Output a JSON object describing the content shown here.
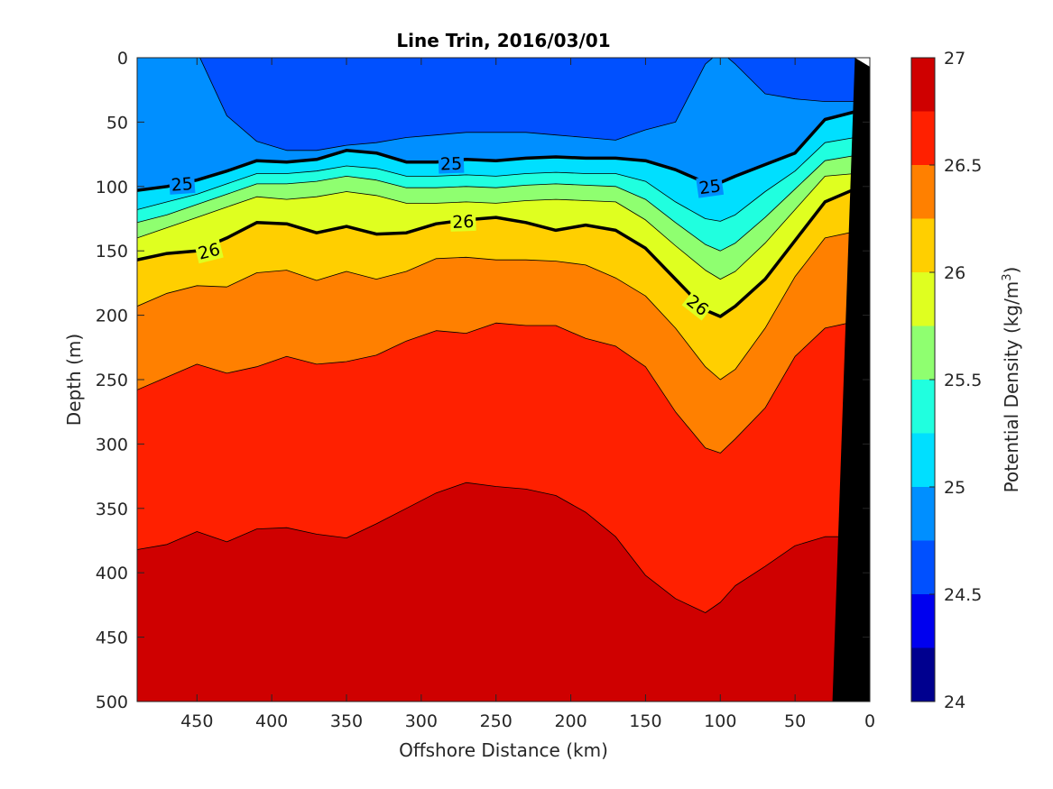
{
  "chart_data": {
    "type": "contour",
    "title": "Line Trin, 2016/03/01",
    "xlabel": "Offshore Distance (km)",
    "ylabel": "Depth (m)",
    "colorbar_label": "Potential Density (kg/m",
    "colorbar_label_sup": "3",
    "colorbar_label_end": ")",
    "xlim": [
      490,
      0
    ],
    "ylim": [
      0,
      500
    ],
    "x_reversed": true,
    "y_reversed": true,
    "xticks": [
      450,
      400,
      350,
      300,
      250,
      200,
      150,
      100,
      50,
      0
    ],
    "yticks": [
      0,
      50,
      100,
      150,
      200,
      250,
      300,
      350,
      400,
      450,
      500
    ],
    "clim": [
      24,
      27
    ],
    "cbar_ticks": [
      24,
      24.5,
      25,
      25.5,
      26,
      26.5,
      27
    ],
    "levels": [
      24,
      24.25,
      24.5,
      24.75,
      25,
      25.25,
      25.5,
      25.75,
      26,
      26.25,
      26.5,
      26.75,
      27
    ],
    "level_colors": [
      "#00008f",
      "#0000ef",
      "#0050ff",
      "#008fff",
      "#00dfff",
      "#20ffdf",
      "#8fff70",
      "#dfff20",
      "#ffcf00",
      "#ff8000",
      "#ff2000",
      "#cf0000"
    ],
    "x_stations": [
      490,
      470,
      450,
      430,
      410,
      390,
      370,
      350,
      330,
      310,
      290,
      270,
      250,
      230,
      210,
      190,
      170,
      150,
      130,
      110,
      100,
      90,
      70,
      50,
      30,
      10
    ],
    "isopycnals": [
      {
        "level": 24.75,
        "depths": [
          -5,
          -5,
          -5,
          45,
          65,
          72,
          72,
          68,
          66,
          62,
          60,
          58,
          58,
          58,
          60,
          62,
          64,
          56,
          50,
          5,
          -5,
          5,
          28,
          32,
          34,
          34
        ]
      },
      {
        "level": 25.0,
        "depths": [
          103,
          100,
          95,
          88,
          80,
          81,
          79,
          72,
          74,
          81,
          81,
          79,
          80,
          78,
          77,
          78,
          78,
          80,
          87,
          97,
          97,
          92,
          83,
          74,
          48,
          42
        ]
      },
      {
        "level": 25.25,
        "depths": [
          118,
          112,
          106,
          98,
          90,
          90,
          88,
          84,
          86,
          92,
          92,
          91,
          92,
          90,
          89,
          90,
          90,
          96,
          112,
          125,
          127,
          122,
          104,
          88,
          66,
          62
        ]
      },
      {
        "level": 25.5,
        "depths": [
          128,
          122,
          114,
          106,
          98,
          98,
          96,
          92,
          95,
          101,
          101,
          100,
          101,
          99,
          98,
          99,
          100,
          110,
          128,
          145,
          150,
          144,
          124,
          102,
          80,
          76
        ]
      },
      {
        "level": 25.75,
        "depths": [
          140,
          132,
          124,
          116,
          108,
          110,
          108,
          104,
          107,
          113,
          113,
          112,
          113,
          111,
          110,
          111,
          112,
          126,
          146,
          165,
          172,
          166,
          144,
          118,
          92,
          90
        ]
      },
      {
        "level": 26.0,
        "depths": [
          157,
          152,
          150,
          140,
          128,
          129,
          136,
          131,
          137,
          136,
          129,
          126,
          124,
          128,
          134,
          130,
          134,
          148,
          172,
          196,
          201,
          193,
          172,
          142,
          112,
          102
        ]
      },
      {
        "level": 26.25,
        "depths": [
          193,
          183,
          177,
          178,
          167,
          165,
          173,
          166,
          172,
          166,
          156,
          155,
          157,
          157,
          158,
          161,
          171,
          185,
          210,
          240,
          250,
          242,
          210,
          170,
          140,
          135
        ]
      },
      {
        "level": 26.5,
        "depths": [
          258,
          248,
          238,
          245,
          240,
          232,
          238,
          236,
          231,
          220,
          212,
          214,
          206,
          208,
          208,
          218,
          224,
          240,
          275,
          303,
          307,
          296,
          272,
          232,
          210,
          205
        ]
      },
      {
        "level": 26.75,
        "depths": [
          382,
          378,
          368,
          376,
          366,
          365,
          370,
          373,
          362,
          350,
          338,
          330,
          333,
          335,
          340,
          353,
          372,
          402,
          420,
          431,
          423,
          410,
          395,
          379,
          372,
          372
        ]
      }
    ],
    "bold_contours": [
      {
        "level": 25,
        "labels": [
          {
            "text": "25",
            "x": 460,
            "depth": 98,
            "angle": -4
          },
          {
            "text": "25",
            "x": 280,
            "depth": 82,
            "angle": -2
          },
          {
            "text": "25",
            "x": 107,
            "depth": 100,
            "angle": -8
          }
        ]
      },
      {
        "level": 26,
        "labels": [
          {
            "text": "26",
            "x": 442,
            "depth": 150,
            "angle": -14
          },
          {
            "text": "26",
            "x": 272,
            "depth": 127,
            "angle": -2
          },
          {
            "text": "26",
            "x": 115,
            "depth": 192,
            "angle": 38
          }
        ]
      }
    ],
    "bathymetry": {
      "mask_color": "#000000",
      "top_x_km": 0,
      "bottom_left_x_km": 25,
      "surface_white_x_km": 10
    }
  }
}
